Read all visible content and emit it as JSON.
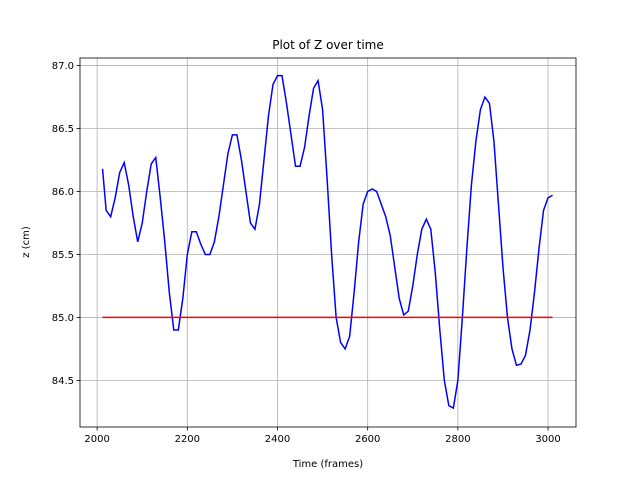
{
  "chart_data": {
    "type": "line",
    "title": "Plot of Z over time",
    "xlabel": "Time (frames)",
    "ylabel": "z (cm)",
    "xlim": [
      1962,
      3062
    ],
    "ylim": [
      84.13,
      87.06
    ],
    "xticks": [
      2000,
      2200,
      2400,
      2600,
      2800,
      3000
    ],
    "yticks": [
      84.5,
      {
        "value": 85,
        "label": "85.0"
      },
      85.5,
      {
        "value": 86,
        "label": "86.0"
      },
      86.5,
      {
        "value": 87,
        "label": "87.0"
      }
    ],
    "grid": true,
    "series": [
      {
        "color": "#0000ff",
        "x": [
          2012,
          2020,
          2030,
          2040,
          2050,
          2060,
          2070,
          2080,
          2090,
          2100,
          2110,
          2120,
          2130,
          2140,
          2150,
          2160,
          2170,
          2180,
          2190,
          2200,
          2210,
          2220,
          2230,
          2240,
          2250,
          2260,
          2270,
          2280,
          2290,
          2300,
          2310,
          2320,
          2330,
          2340,
          2350,
          2360,
          2370,
          2380,
          2390,
          2400,
          2410,
          2420,
          2430,
          2440,
          2450,
          2460,
          2470,
          2480,
          2490,
          2500,
          2510,
          2520,
          2530,
          2540,
          2550,
          2560,
          2570,
          2580,
          2590,
          2600,
          2610,
          2620,
          2630,
          2640,
          2650,
          2660,
          2670,
          2680,
          2690,
          2700,
          2710,
          2720,
          2730,
          2740,
          2750,
          2760,
          2770,
          2780,
          2790,
          2800,
          2810,
          2820,
          2830,
          2840,
          2850,
          2860,
          2870,
          2880,
          2890,
          2900,
          2910,
          2920,
          2930,
          2940,
          2950,
          2960,
          2970,
          2980,
          2990,
          3000,
          3010
        ],
        "values": [
          86.18,
          85.85,
          85.8,
          85.95,
          86.15,
          86.23,
          86.05,
          85.8,
          85.6,
          85.75,
          86.0,
          86.22,
          86.27,
          85.95,
          85.6,
          85.2,
          84.9,
          84.9,
          85.15,
          85.5,
          85.68,
          85.68,
          85.58,
          85.5,
          85.5,
          85.6,
          85.8,
          86.05,
          86.3,
          86.45,
          86.45,
          86.25,
          86.0,
          85.75,
          85.7,
          85.9,
          86.25,
          86.6,
          86.85,
          86.92,
          86.92,
          86.7,
          86.45,
          86.2,
          86.2,
          86.35,
          86.6,
          86.82,
          86.88,
          86.65,
          86.1,
          85.5,
          85.0,
          84.8,
          84.75,
          84.85,
          85.2,
          85.6,
          85.9,
          86.0,
          86.02,
          86.0,
          85.9,
          85.8,
          85.65,
          85.4,
          85.15,
          85.02,
          85.05,
          85.25,
          85.5,
          85.7,
          85.78,
          85.7,
          85.35,
          84.9,
          84.5,
          84.3,
          84.28,
          84.5,
          85.0,
          85.55,
          86.05,
          86.4,
          86.65,
          86.75,
          86.7,
          86.4,
          85.9,
          85.4,
          85.0,
          84.75,
          84.62,
          84.63,
          84.7,
          84.9,
          85.2,
          85.55,
          85.85,
          85.95,
          85.97
        ]
      },
      {
        "color": "#ff0000",
        "x": [
          2012,
          3010
        ],
        "values": [
          85,
          85
        ]
      }
    ]
  }
}
